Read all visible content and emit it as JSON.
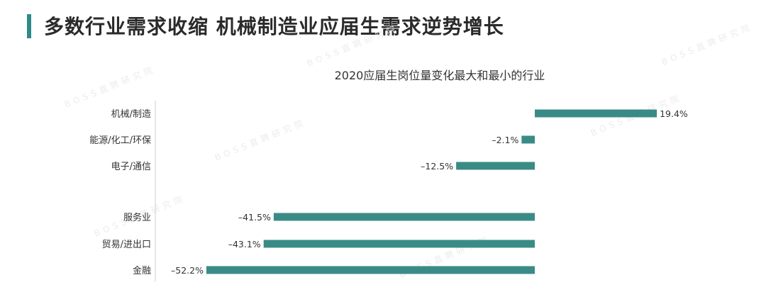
{
  "header": {
    "title": "多数行业需求收缩 机械制造业应届生需求逆势增长"
  },
  "watermark": {
    "text": "BOSS直聘研究院"
  },
  "colors": {
    "accent": "#2e8b86",
    "bar": "#3a8b86"
  },
  "chart_data": {
    "type": "bar",
    "orientation": "horizontal",
    "title": "2020应届生岗位量变化最大和最小的行业",
    "categories": [
      "机械/制造",
      "能源/化工/环保",
      "电子/通信",
      "服务业",
      "贸易/进出口",
      "金融"
    ],
    "values": [
      19.4,
      -2.1,
      -12.5,
      -41.5,
      -43.1,
      -52.2
    ],
    "value_labels": [
      "19.4%",
      "–2.1%",
      "–12.5%",
      "–41.5%",
      "–43.1%",
      "–52.2%"
    ],
    "unit": "%",
    "xlim": [
      -55,
      20
    ],
    "grid": false,
    "legend": "none"
  }
}
